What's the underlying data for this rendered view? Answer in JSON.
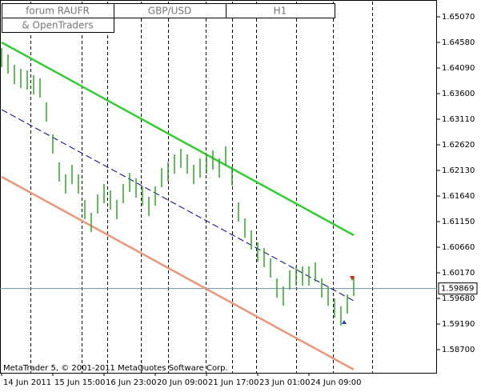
{
  "chart_data": {
    "type": "ohlc-bars",
    "title": "GBP/USD",
    "timeframe": "H1",
    "caption": [
      "forum RAUFR",
      "& OpenTraders"
    ],
    "footer": "MetaTrader 5, © 2001-2011 MetaQuotes Software Corp.",
    "categories": [
      "14 Jun 2011",
      null,
      null,
      null,
      null,
      null,
      null,
      null,
      "15 Jun 15:00",
      null,
      null,
      null,
      null,
      null,
      null,
      null,
      "16 Jun 23:00",
      null,
      null,
      null,
      null,
      null,
      null,
      null,
      "20 Jun 09:00",
      null,
      null,
      null,
      null,
      null,
      null,
      null,
      "21 Jun 17:00",
      null,
      null,
      null,
      null,
      null,
      null,
      null,
      "23 Jun 01:00",
      null,
      null,
      null,
      null,
      null,
      null,
      null,
      "24 Jun 09:00",
      null,
      null,
      null,
      null,
      null,
      null,
      null
    ],
    "high": [
      1.64473,
      1.64351,
      1.64151,
      1.64075,
      1.64044,
      1.63952,
      1.63891,
      1.63432,
      1.62819,
      1.62283,
      1.62054,
      1.62237,
      1.62054,
      1.61564,
      1.61319,
      1.61671,
      1.6187,
      1.61747,
      1.61564,
      1.6187,
      1.62084,
      1.61977,
      1.61824,
      1.61625,
      1.61824,
      1.62176,
      1.62283,
      1.62437,
      1.62544,
      1.62437,
      1.62237,
      1.6236,
      1.62437,
      1.62513,
      1.6236,
      1.6259,
      1.62207,
      1.61518,
      1.61211,
      1.60982,
      1.60752,
      1.60645,
      1.60446,
      1.60063,
      1.5991,
      1.60216,
      1.60293,
      1.60293,
      1.60293,
      1.60369,
      1.60063,
      1.5991,
      1.5968,
      1.59527,
      1.59757,
      1.60094
    ],
    "low": [
      1.64105,
      1.63983,
      1.63783,
      1.63707,
      1.63676,
      1.63584,
      1.63523,
      1.63064,
      1.62451,
      1.61915,
      1.61686,
      1.61869,
      1.61686,
      1.61196,
      1.60951,
      1.61303,
      1.61502,
      1.61379,
      1.61196,
      1.61502,
      1.61716,
      1.61609,
      1.61456,
      1.61257,
      1.61456,
      1.61808,
      1.61915,
      1.62069,
      1.62176,
      1.62069,
      1.61869,
      1.61992,
      1.62069,
      1.62145,
      1.61992,
      1.62222,
      1.61839,
      1.6115,
      1.60843,
      1.60614,
      1.60384,
      1.60277,
      1.60078,
      1.59695,
      1.59542,
      1.59848,
      1.59925,
      1.59925,
      1.59925,
      1.60001,
      1.59695,
      1.59542,
      1.59312,
      1.59159,
      1.59389,
      1.59726
    ],
    "color": "#33a02c",
    "channel_lines": [
      {
        "color": "#33cc33",
        "style": "solid",
        "values": [
          1.6458,
          1.6089
        ]
      },
      {
        "color": "#00008b",
        "style": "dashed",
        "values": [
          1.63294,
          1.59634
        ]
      },
      {
        "color": "#e9967a",
        "style": "solid",
        "values": [
          1.62008,
          1.58317
        ]
      }
    ],
    "current_price": {
      "value": 1.59869,
      "label": "1.59869"
    },
    "ylim": [
      1.58256,
      1.65361
    ],
    "yticks": [
      {
        "value": 1.6507,
        "label": "1.65070"
      },
      {
        "value": 1.6458,
        "label": "1.64580"
      },
      {
        "value": 1.6409,
        "label": "1.64090"
      },
      {
        "value": 1.636,
        "label": "1.63600"
      },
      {
        "value": 1.6311,
        "label": "1.63110"
      },
      {
        "value": 1.6262,
        "label": "1.62620"
      },
      {
        "value": 1.6213,
        "label": "1.62130"
      },
      {
        "value": 1.6164,
        "label": "1.61640"
      },
      {
        "value": 1.6115,
        "label": "1.61150"
      },
      {
        "value": 1.6066,
        "label": "1.60660"
      },
      {
        "value": 1.6017,
        "label": "1.60170"
      },
      {
        "value": 1.5968,
        "label": "1.59680"
      },
      {
        "value": 1.5919,
        "label": "1.59190"
      },
      {
        "value": 1.587,
        "label": "1.58700"
      }
    ]
  }
}
